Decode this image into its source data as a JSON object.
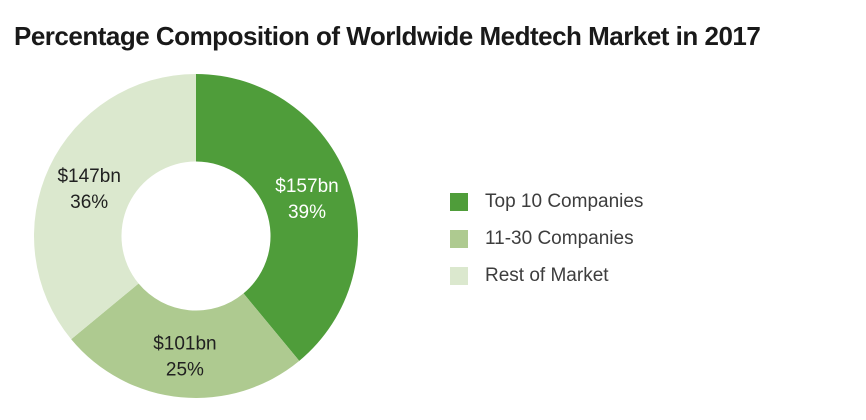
{
  "title": "Percentage Composition of Worldwide Medtech Market in 2017",
  "chart_data": {
    "type": "pie",
    "variant": "donut",
    "title": "Percentage Composition of Worldwide Medtech Market in 2017",
    "start_angle_deg": 0,
    "direction": "clockwise",
    "inner_radius_ratio": 0.46,
    "legend_position": "right",
    "grid": false,
    "slices": [
      {
        "name": "Top 10 Companies",
        "value_bn": 157,
        "value_label": "$157bn",
        "pct": 39,
        "pct_label": "39%",
        "color": "#4f9d3a",
        "text_color": "#ffffff"
      },
      {
        "name": "11-30 Companies",
        "value_bn": 101,
        "value_label": "$101bn",
        "pct": 25,
        "pct_label": "25%",
        "color": "#aeca90",
        "text_color": "#212121"
      },
      {
        "name": "Rest of Market",
        "value_bn": 147,
        "value_label": "$147bn",
        "pct": 36,
        "pct_label": "36%",
        "color": "#dbe8ce",
        "text_color": "#212121"
      }
    ]
  }
}
